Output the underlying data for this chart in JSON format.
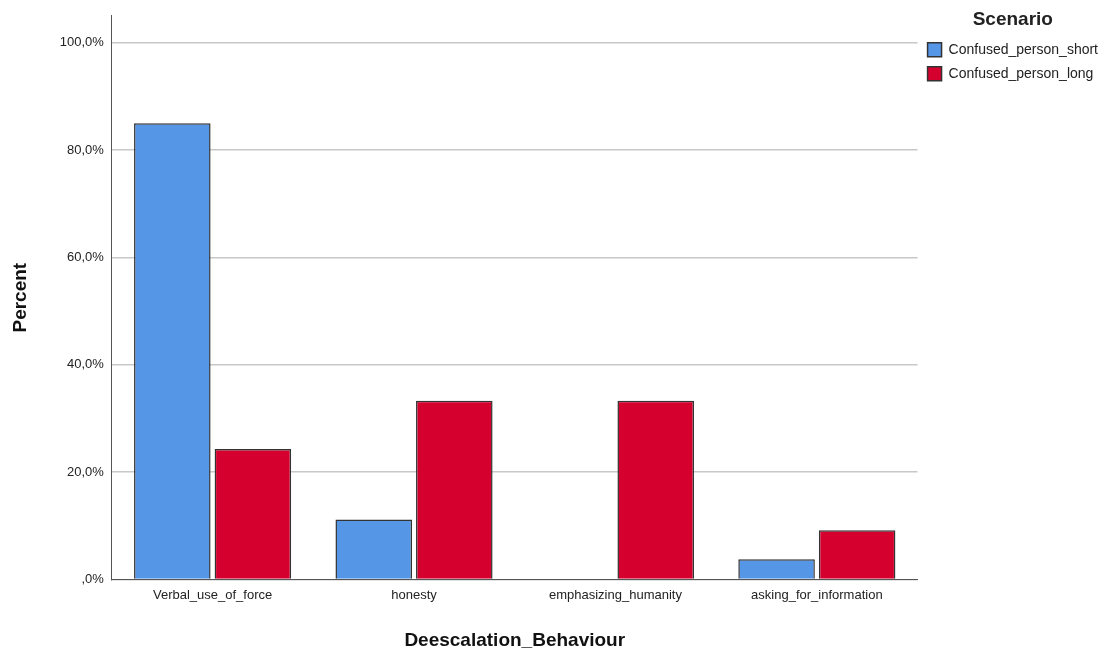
{
  "chart_data": {
    "type": "bar",
    "xlabel": "Deescalation_Behaviour",
    "ylabel": "Percent",
    "legend_title": "Scenario",
    "legend": "top right",
    "grid": "y",
    "categories": [
      "Verbal_use_of_force",
      "honesty",
      "emphasizing_humanity",
      "asking_for_information"
    ],
    "series": [
      {
        "name": "Confused_person_short",
        "color": "#5596e6",
        "values": [
          85.0,
          11.2,
          0,
          3.8
        ]
      },
      {
        "name": "Confused_person_long",
        "color": "#d6002f",
        "values": [
          24.3,
          33.3,
          33.3,
          9.2
        ]
      }
    ],
    "ylim": [
      0,
      105
    ],
    "yticks": [
      {
        "value": 0,
        "label": ",0%"
      },
      {
        "value": 20,
        "label": "20,0%"
      },
      {
        "value": 40,
        "label": "40,0%"
      },
      {
        "value": 60,
        "label": "60,0%"
      },
      {
        "value": 80,
        "label": "80,0%"
      },
      {
        "value": 100,
        "label": "100,0%"
      }
    ]
  }
}
